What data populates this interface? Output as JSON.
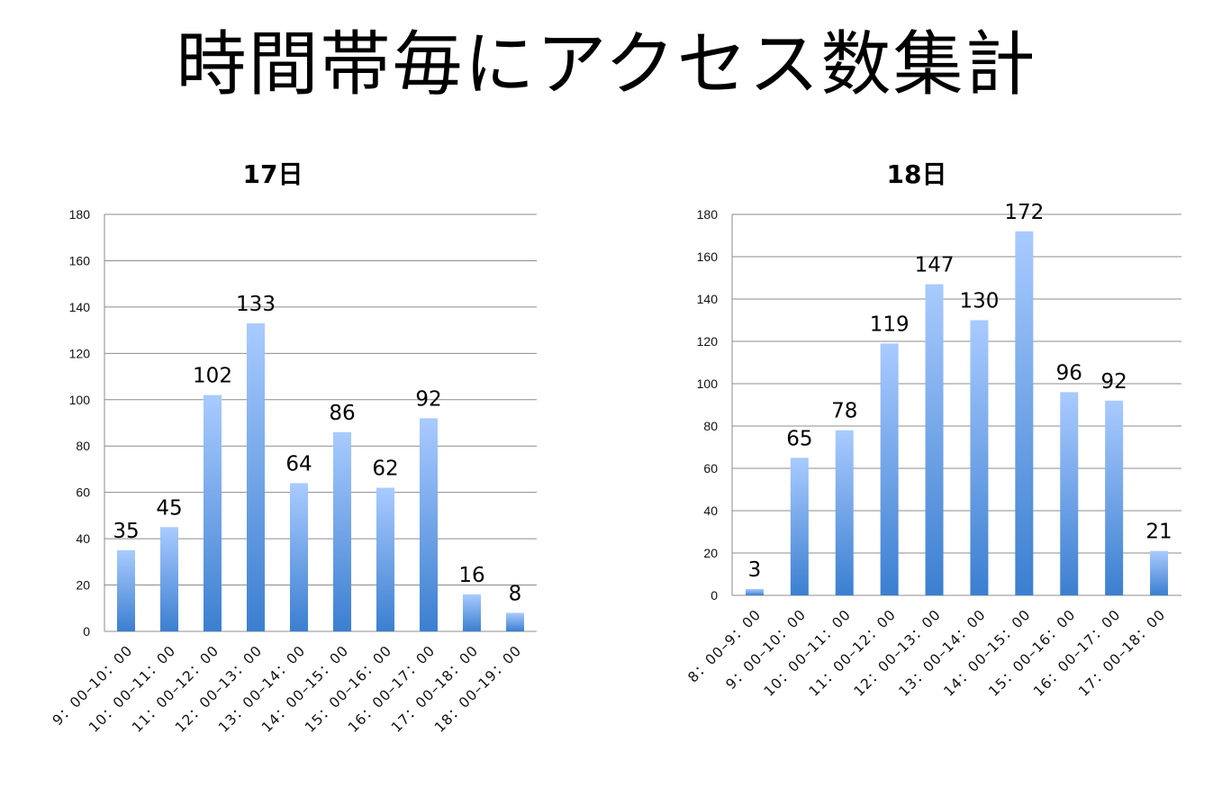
{
  "page": {
    "title": "時間帯毎にアクセス数集計"
  },
  "colors": {
    "bar_top": "#a9cbff",
    "bar_bottom": "#3b7fd0",
    "grid": "#8c8c8c"
  },
  "chart_data": [
    {
      "type": "bar",
      "title": "17日",
      "categories": [
        "9：00–10：00",
        "10：00–11：00",
        "11：00–12：00",
        "12：00–13：00",
        "13：00–14：00",
        "14：00–15：00",
        "15：00–16：00",
        "16：00–17：00",
        "17：00–18：00",
        "18：00–19：00"
      ],
      "values": [
        35,
        45,
        102,
        133,
        64,
        86,
        62,
        92,
        16,
        8
      ],
      "yticks": [
        0,
        20,
        40,
        60,
        80,
        100,
        120,
        140,
        160,
        180
      ],
      "ylim": [
        0,
        180
      ],
      "xlabel": "",
      "ylabel": "",
      "grid": true,
      "legend": "none"
    },
    {
      "type": "bar",
      "title": "18日",
      "categories": [
        "8：00–9：00",
        "9：00–10：00",
        "10：00–11：00",
        "11：00–12：00",
        "12：00–13：00",
        "13：00–14：00",
        "14：00–15：00",
        "15：00–16：00",
        "16：00–17：00",
        "17：00–18：00"
      ],
      "values": [
        3,
        65,
        78,
        119,
        147,
        130,
        172,
        96,
        92,
        21
      ],
      "yticks": [
        0,
        20,
        40,
        60,
        80,
        100,
        120,
        140,
        160,
        180
      ],
      "ylim": [
        0,
        180
      ],
      "xlabel": "",
      "ylabel": "",
      "grid": true,
      "legend": "none"
    }
  ]
}
